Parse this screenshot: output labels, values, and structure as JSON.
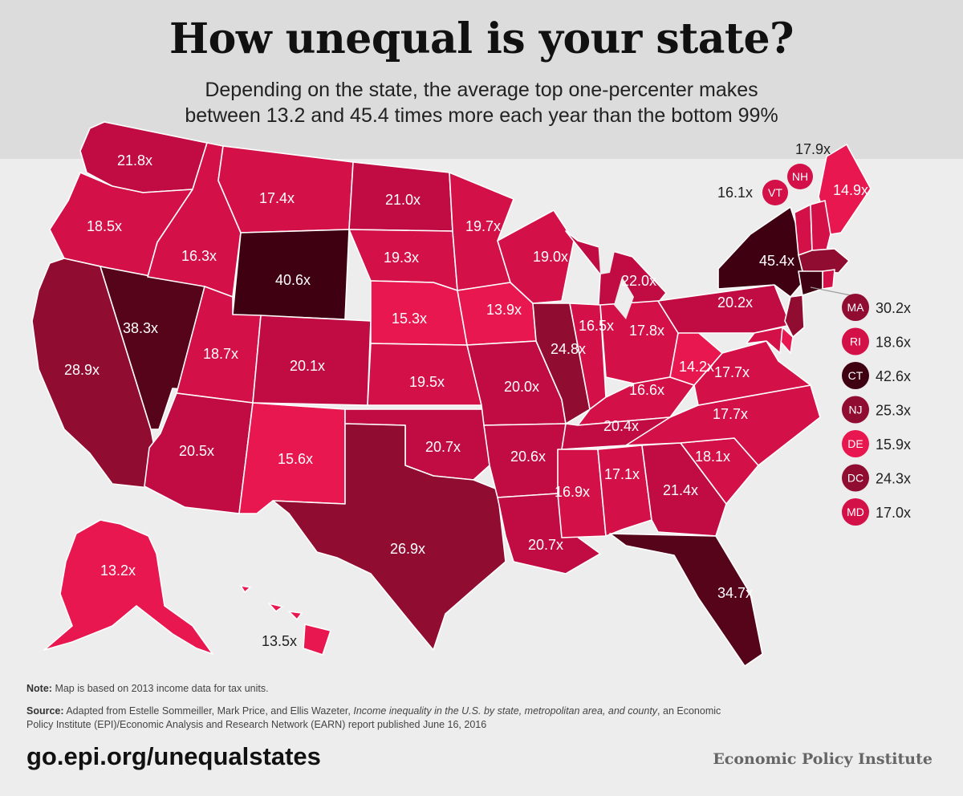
{
  "title": "How unequal is your state?",
  "subtitle_line1": "Depending on the state, the average top one-percenter makes",
  "subtitle_line2": "between 13.2 and 45.4 times more each year than the bottom 99%",
  "color_scale": [
    "#e8174f",
    "#d31048",
    "#c00c42",
    "#900c30",
    "#55041a",
    "#3f0012"
  ],
  "states": [
    {
      "abbr": "WA",
      "label": "21.8x",
      "value": 21.8,
      "shade": 2
    },
    {
      "abbr": "OR",
      "label": "18.5x",
      "value": 18.5,
      "shade": 1
    },
    {
      "abbr": "CA",
      "label": "28.9x",
      "value": 28.9,
      "shade": 3
    },
    {
      "abbr": "NV",
      "label": "38.3x",
      "value": 38.3,
      "shade": 4
    },
    {
      "abbr": "ID",
      "label": "16.3x",
      "value": 16.3,
      "shade": 1
    },
    {
      "abbr": "MT",
      "label": "17.4x",
      "value": 17.4,
      "shade": 1
    },
    {
      "abbr": "WY",
      "label": "40.6x",
      "value": 40.6,
      "shade": 5
    },
    {
      "abbr": "UT",
      "label": "18.7x",
      "value": 18.7,
      "shade": 1
    },
    {
      "abbr": "AZ",
      "label": "20.5x",
      "value": 20.5,
      "shade": 2
    },
    {
      "abbr": "CO",
      "label": "20.1x",
      "value": 20.1,
      "shade": 2
    },
    {
      "abbr": "NM",
      "label": "15.6x",
      "value": 15.6,
      "shade": 0
    },
    {
      "abbr": "ND",
      "label": "21.0x",
      "value": 21.0,
      "shade": 2
    },
    {
      "abbr": "SD",
      "label": "19.3x",
      "value": 19.3,
      "shade": 1
    },
    {
      "abbr": "NE",
      "label": "15.3x",
      "value": 15.3,
      "shade": 0
    },
    {
      "abbr": "KS",
      "label": "19.5x",
      "value": 19.5,
      "shade": 1
    },
    {
      "abbr": "OK",
      "label": "20.7x",
      "value": 20.7,
      "shade": 2
    },
    {
      "abbr": "TX",
      "label": "26.9x",
      "value": 26.9,
      "shade": 3
    },
    {
      "abbr": "MN",
      "label": "19.7x",
      "value": 19.7,
      "shade": 1
    },
    {
      "abbr": "IA",
      "label": "13.9x",
      "value": 13.9,
      "shade": 0
    },
    {
      "abbr": "MO",
      "label": "20.0x",
      "value": 20.0,
      "shade": 2
    },
    {
      "abbr": "AR",
      "label": "20.6x",
      "value": 20.6,
      "shade": 2
    },
    {
      "abbr": "LA",
      "label": "20.7x",
      "value": 20.7,
      "shade": 2
    },
    {
      "abbr": "WI",
      "label": "19.0x",
      "value": 19.0,
      "shade": 1
    },
    {
      "abbr": "IL",
      "label": "24.8x",
      "value": 24.8,
      "shade": 3
    },
    {
      "abbr": "MI",
      "label": "22.0x",
      "value": 22.0,
      "shade": 2
    },
    {
      "abbr": "IN",
      "label": "16.5x",
      "value": 16.5,
      "shade": 1
    },
    {
      "abbr": "OH",
      "label": "17.8x",
      "value": 17.8,
      "shade": 1
    },
    {
      "abbr": "KY",
      "label": "16.6x",
      "value": 16.6,
      "shade": 1
    },
    {
      "abbr": "TN",
      "label": "20.4x",
      "value": 20.4,
      "shade": 2
    },
    {
      "abbr": "MS",
      "label": "16.9x",
      "value": 16.9,
      "shade": 1
    },
    {
      "abbr": "AL",
      "label": "17.1x",
      "value": 17.1,
      "shade": 1
    },
    {
      "abbr": "GA",
      "label": "21.4x",
      "value": 21.4,
      "shade": 2
    },
    {
      "abbr": "FL",
      "label": "34.7x",
      "value": 34.7,
      "shade": 4
    },
    {
      "abbr": "SC",
      "label": "18.1x",
      "value": 18.1,
      "shade": 1
    },
    {
      "abbr": "NC",
      "label": "17.7x",
      "value": 17.7,
      "shade": 1
    },
    {
      "abbr": "VA",
      "label": "17.7x",
      "value": 17.7,
      "shade": 1
    },
    {
      "abbr": "WV",
      "label": "14.2x",
      "value": 14.2,
      "shade": 0
    },
    {
      "abbr": "PA",
      "label": "20.2x",
      "value": 20.2,
      "shade": 2
    },
    {
      "abbr": "NY",
      "label": "45.4x",
      "value": 45.4,
      "shade": 5
    },
    {
      "abbr": "ME",
      "label": "14.9x",
      "value": 14.9,
      "shade": 0
    },
    {
      "abbr": "VT",
      "label": "16.1x",
      "value": 16.1,
      "shade": 1
    },
    {
      "abbr": "NH",
      "label": "17.9x",
      "value": 17.9,
      "shade": 1
    },
    {
      "abbr": "AK",
      "label": "13.2x",
      "value": 13.2,
      "shade": 0
    },
    {
      "abbr": "HI",
      "label": "13.5x",
      "value": 13.5,
      "shade": 0
    }
  ],
  "legend": [
    {
      "abbr": "MA",
      "label": "30.2x",
      "value": 30.2,
      "shade": 3
    },
    {
      "abbr": "RI",
      "label": "18.6x",
      "value": 18.6,
      "shade": 1
    },
    {
      "abbr": "CT",
      "label": "42.6x",
      "value": 42.6,
      "shade": 5
    },
    {
      "abbr": "NJ",
      "label": "25.3x",
      "value": 25.3,
      "shade": 3
    },
    {
      "abbr": "DE",
      "label": "15.9x",
      "value": 15.9,
      "shade": 0
    },
    {
      "abbr": "DC",
      "label": "24.3x",
      "value": 24.3,
      "shade": 3
    },
    {
      "abbr": "MD",
      "label": "17.0x",
      "value": 17.0,
      "shade": 1
    }
  ],
  "note_label": "Note:",
  "note_text": "Map is based on 2013 income data for tax units.",
  "source_label": "Source:",
  "source_text1": "Adapted from Estelle Sommeiller, Mark Price, and Ellis Wazeter,",
  "source_title": "Income inequality in the U.S. by state, metropolitan area, and county",
  "source_text2": ", an Economic Policy Institute (EPI)/Economic Analysis and Research Network (EARN) report published June 16, 2016",
  "url": "go.epi.org/unequalstates",
  "organization": "Economic Policy Institute"
}
